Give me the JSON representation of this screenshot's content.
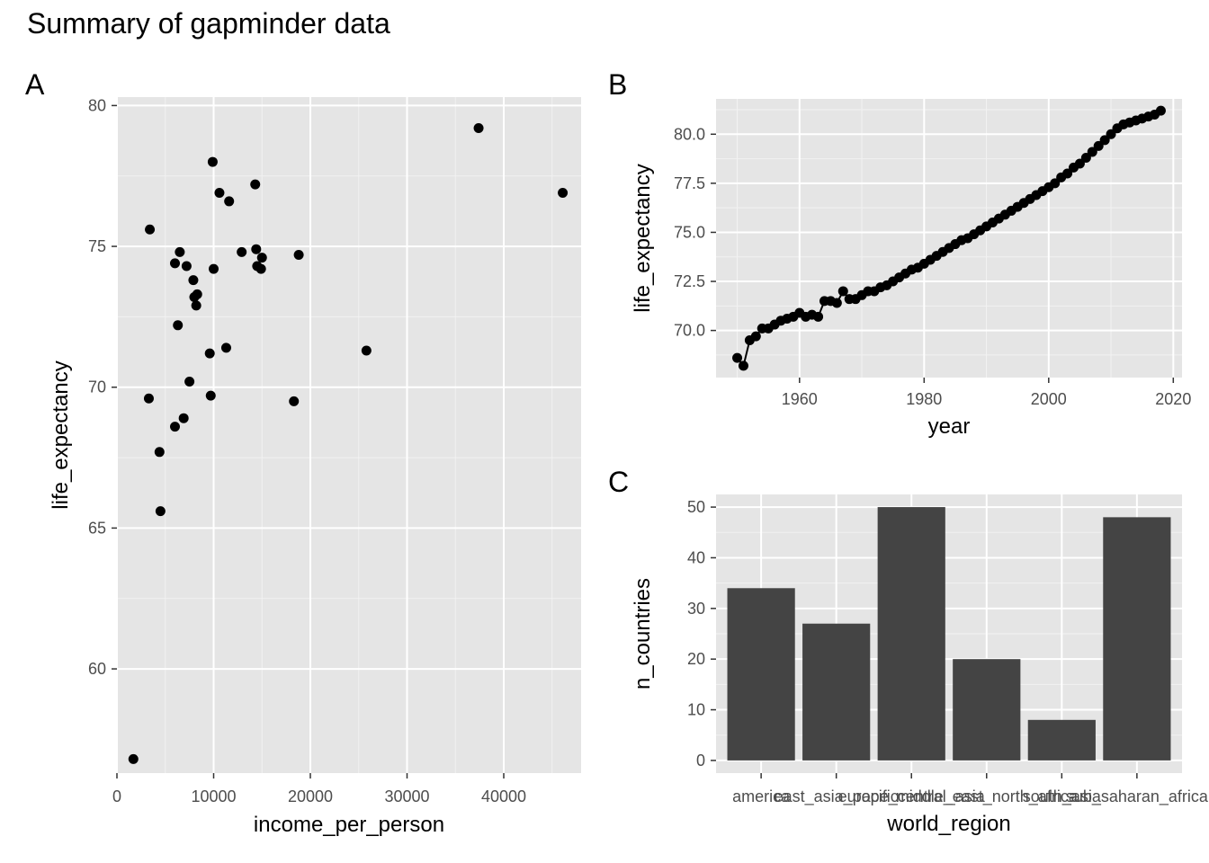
{
  "title": "Summary of gapminder data",
  "panel_tags": [
    "A",
    "B",
    "C"
  ],
  "colors": {
    "panel_bg": "#e5e5e5",
    "grid_major": "#ffffff",
    "point": "#000000",
    "bar": "#444444",
    "tick_text": "#4d4d4d"
  },
  "chart_data": [
    {
      "type": "scatter",
      "xlabel": "income_per_person",
      "ylabel": "life_expectancy",
      "x_ticks": [
        0,
        10000,
        20000,
        30000,
        40000
      ],
      "y_ticks": [
        60,
        65,
        70,
        75,
        80
      ],
      "xlim": [
        0,
        48000
      ],
      "ylim": [
        56.3,
        80.3
      ],
      "points": [
        [
          1700,
          56.8
        ],
        [
          3400,
          75.6
        ],
        [
          3300,
          69.6
        ],
        [
          4400,
          67.7
        ],
        [
          4500,
          65.6
        ],
        [
          6000,
          74.4
        ],
        [
          6000,
          68.6
        ],
        [
          6300,
          72.2
        ],
        [
          6500,
          74.8
        ],
        [
          6900,
          68.9
        ],
        [
          7200,
          74.3
        ],
        [
          7500,
          70.2
        ],
        [
          7900,
          73.8
        ],
        [
          8000,
          73.2
        ],
        [
          8200,
          72.9
        ],
        [
          8300,
          73.3
        ],
        [
          9600,
          71.2
        ],
        [
          9700,
          69.7
        ],
        [
          9900,
          78.0
        ],
        [
          10000,
          74.2
        ],
        [
          10600,
          76.9
        ],
        [
          11300,
          71.4
        ],
        [
          11600,
          76.6
        ],
        [
          12900,
          74.8
        ],
        [
          14300,
          77.2
        ],
        [
          14400,
          74.9
        ],
        [
          14500,
          74.3
        ],
        [
          14900,
          74.2
        ],
        [
          15000,
          74.6
        ],
        [
          18300,
          69.5
        ],
        [
          18800,
          74.7
        ],
        [
          25800,
          71.3
        ],
        [
          37400,
          79.2
        ],
        [
          46100,
          76.9
        ]
      ]
    },
    {
      "type": "line",
      "xlabel": "year",
      "ylabel": "life_expectancy",
      "x_ticks": [
        1960,
        1980,
        2000,
        2020
      ],
      "y_ticks": [
        "70.0",
        "72.5",
        "75.0",
        "77.5",
        "80.0"
      ],
      "xlim": [
        1946.6,
        2021.4
      ],
      "ylim": [
        67.6,
        81.8
      ],
      "x": [
        1950,
        1951,
        1952,
        1953,
        1954,
        1955,
        1956,
        1957,
        1958,
        1959,
        1960,
        1961,
        1962,
        1963,
        1964,
        1965,
        1966,
        1967,
        1968,
        1969,
        1970,
        1971,
        1972,
        1973,
        1974,
        1975,
        1976,
        1977,
        1978,
        1979,
        1980,
        1981,
        1982,
        1983,
        1984,
        1985,
        1986,
        1987,
        1988,
        1989,
        1990,
        1991,
        1992,
        1993,
        1994,
        1995,
        1996,
        1997,
        1998,
        1999,
        2000,
        2001,
        2002,
        2003,
        2004,
        2005,
        2006,
        2007,
        2008,
        2009,
        2010,
        2011,
        2012,
        2013,
        2014,
        2015,
        2016,
        2017,
        2018
      ],
      "y": [
        68.6,
        68.2,
        69.5,
        69.7,
        70.1,
        70.1,
        70.3,
        70.5,
        70.6,
        70.7,
        70.9,
        70.7,
        70.8,
        70.7,
        71.5,
        71.5,
        71.4,
        72.0,
        71.6,
        71.6,
        71.8,
        72.0,
        72.0,
        72.2,
        72.3,
        72.5,
        72.7,
        72.9,
        73.1,
        73.2,
        73.4,
        73.6,
        73.8,
        74.0,
        74.2,
        74.4,
        74.6,
        74.7,
        74.9,
        75.1,
        75.3,
        75.5,
        75.7,
        75.9,
        76.1,
        76.3,
        76.5,
        76.7,
        76.9,
        77.1,
        77.3,
        77.5,
        77.8,
        78.0,
        78.3,
        78.5,
        78.8,
        79.1,
        79.4,
        79.7,
        80.0,
        80.3,
        80.5,
        80.6,
        80.7,
        80.8,
        80.9,
        81.0,
        81.2
      ]
    },
    {
      "type": "bar",
      "xlabel": "world_region",
      "ylabel": "n_countries",
      "categories": [
        "america",
        "east_asia_pacific",
        "europe_central_asia",
        "middle_east_north_africa",
        "south_asia",
        "sub_saharan_africa"
      ],
      "values": [
        34,
        27,
        50,
        20,
        8,
        48
      ],
      "y_ticks": [
        0,
        10,
        20,
        30,
        40,
        50
      ],
      "ylim": [
        -2.5,
        52.5
      ]
    }
  ]
}
